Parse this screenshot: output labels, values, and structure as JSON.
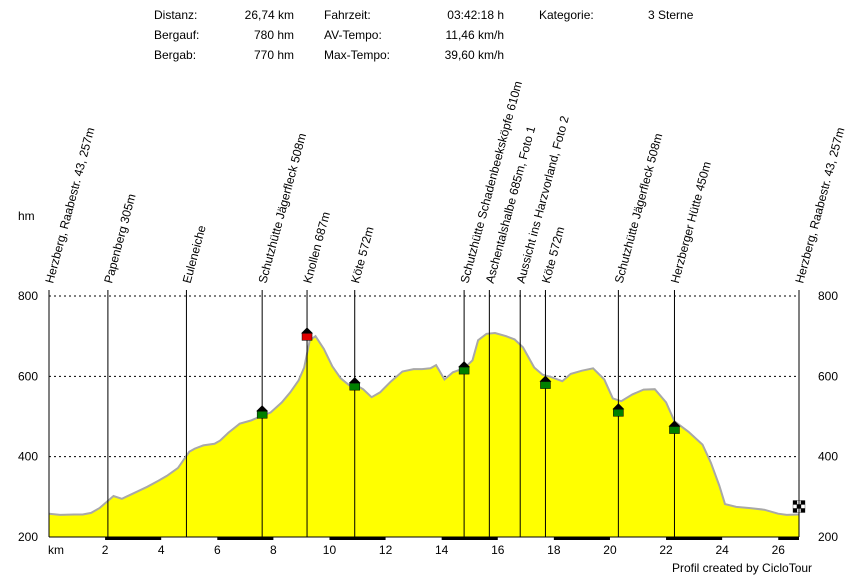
{
  "stats": {
    "distanz_label": "Distanz:",
    "distanz_value": "26,74 km",
    "bergauf_label": "Bergauf:",
    "bergauf_value": "780 hm",
    "bergab_label": "Bergab:",
    "bergab_value": "770 hm",
    "fahrzeit_label": "Fahrzeit:",
    "fahrzeit_value": "03:42:18 h",
    "avtempo_label": "AV-Tempo:",
    "avtempo_value": "11,46 km/h",
    "maxtempo_label": "Max-Tempo:",
    "maxtempo_value": "39,60 km/h",
    "kategorie_label": "Kategorie:",
    "kategorie_value": "3 Sterne"
  },
  "credit": "Profil created by CicloTour",
  "colors": {
    "fill": "#ffff00",
    "outline": "#a8a8a8",
    "marker_green": "#008000",
    "marker_red": "#e00000",
    "marker_roof": "#000000"
  },
  "chart_data": {
    "type": "area",
    "title": "",
    "xlabel": "km",
    "ylabel": "hm",
    "xlim": [
      0,
      26.74
    ],
    "ylim": [
      200,
      800
    ],
    "x_ticks": [
      2,
      4,
      6,
      8,
      10,
      12,
      14,
      16,
      18,
      20,
      22,
      24,
      26
    ],
    "y_ticks": [
      200,
      400,
      600,
      800
    ],
    "grid": "horizontal-dashed",
    "profile": {
      "x": [
        0,
        0.4,
        0.9,
        1.2,
        1.5,
        1.8,
        2.1,
        2.3,
        2.6,
        2.9,
        3.2,
        3.5,
        3.9,
        4.2,
        4.6,
        4.8,
        5.0,
        5.2,
        5.5,
        5.9,
        6.1,
        6.4,
        6.8,
        7.2,
        7.6,
        7.9,
        8.3,
        8.6,
        8.9,
        9.1,
        9.3,
        9.5,
        9.8,
        10.1,
        10.4,
        10.7,
        10.9,
        11.2,
        11.5,
        11.8,
        12.2,
        12.6,
        13.0,
        13.3,
        13.6,
        13.8,
        14.1,
        14.4,
        14.8,
        15.1,
        15.3,
        15.6,
        15.9,
        16.3,
        16.6,
        16.9,
        17.3,
        17.6,
        17.9,
        18.3,
        18.6,
        19.0,
        19.4,
        19.8,
        20.1,
        20.4,
        20.8,
        21.2,
        21.6,
        22.0,
        22.3,
        22.8,
        23.3,
        23.6,
        23.9,
        24.1,
        24.5,
        25.0,
        25.5,
        26.0,
        26.3,
        26.74
      ],
      "y": [
        258,
        255,
        256,
        256,
        260,
        272,
        290,
        302,
        295,
        305,
        315,
        325,
        340,
        352,
        372,
        392,
        412,
        420,
        428,
        432,
        440,
        460,
        482,
        490,
        502,
        510,
        535,
        560,
        590,
        622,
        690,
        700,
        668,
        625,
        595,
        578,
        580,
        568,
        548,
        560,
        588,
        612,
        618,
        618,
        620,
        628,
        592,
        610,
        620,
        640,
        690,
        706,
        708,
        700,
        692,
        672,
        622,
        604,
        598,
        588,
        606,
        614,
        620,
        592,
        545,
        538,
        555,
        567,
        568,
        535,
        488,
        462,
        430,
        385,
        328,
        282,
        275,
        272,
        268,
        258,
        255,
        256
      ]
    },
    "waypoints": [
      {
        "label": "Herzberg, Raabestr. 43, 257m",
        "x": 0.0,
        "marker": "none"
      },
      {
        "label": "Papenberg 305m",
        "x": 2.1,
        "marker": "none"
      },
      {
        "label": "Euleneiche",
        "x": 4.9,
        "marker": "none"
      },
      {
        "label": "Schutzhütte Jägerfleck 508m",
        "x": 7.6,
        "marker": "green",
        "y": 508
      },
      {
        "label": "Knollen 687m",
        "x": 9.2,
        "marker": "red",
        "y": 702
      },
      {
        "label": "Köte 572m",
        "x": 10.9,
        "marker": "green",
        "y": 578
      },
      {
        "label": "Schutzhütte Schadenbeeksköpfe 610m",
        "x": 14.8,
        "marker": "green",
        "y": 618
      },
      {
        "label": "Aschentalshalbe 685m, Foto 1",
        "x": 15.7,
        "marker": "none"
      },
      {
        "label": "Aussicht ins Harzvorland, Foto 2",
        "x": 16.8,
        "marker": "none"
      },
      {
        "label": "Köte 572m",
        "x": 17.7,
        "marker": "green",
        "y": 582
      },
      {
        "label": "Schutzhütte Jägerfleck 508m",
        "x": 20.3,
        "marker": "green",
        "y": 513
      },
      {
        "label": "Herzberger Hütte 450m",
        "x": 22.3,
        "marker": "green",
        "y": 470
      },
      {
        "label": "Herzberg, Raabestr. 43, 257m",
        "x": 26.74,
        "marker": "finish"
      }
    ]
  }
}
